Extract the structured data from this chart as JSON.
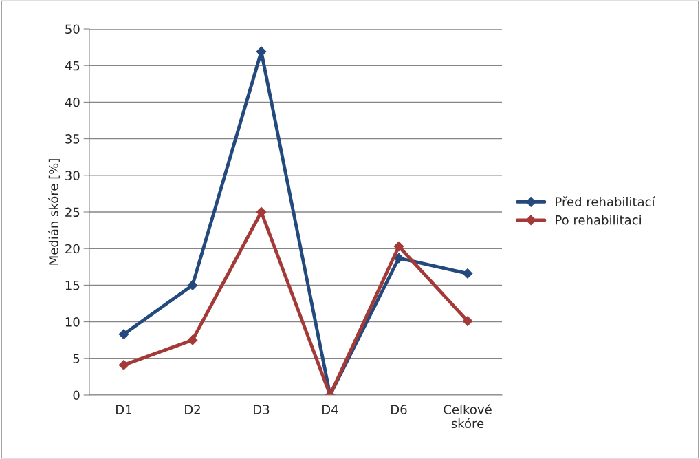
{
  "chart_data": {
    "type": "line",
    "ylabel": "Medián skóre [%]",
    "categories": [
      "D1",
      "D2",
      "D3",
      "D4",
      "D6",
      "Celkové\nskóre"
    ],
    "series": [
      {
        "name": "Před rehabilitací",
        "color": "#24497c",
        "values": [
          8.3,
          15.0,
          46.9,
          0,
          18.7,
          16.6
        ]
      },
      {
        "name": "Po rehabilitaci",
        "color": "#a33a38",
        "values": [
          4.1,
          7.5,
          25.0,
          0,
          20.3,
          10.1
        ]
      }
    ],
    "ylim": [
      0,
      50
    ],
    "yticks": [
      0,
      5,
      10,
      15,
      20,
      25,
      30,
      35,
      40,
      45,
      50
    ],
    "grid": "y",
    "legend": "right",
    "marker": "diamond",
    "line_style": "solid"
  }
}
